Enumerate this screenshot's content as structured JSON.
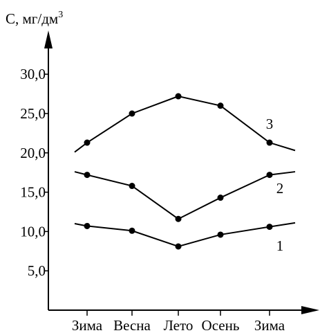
{
  "chart_data": {
    "type": "line",
    "ylabel_main": "C, мг/дм",
    "ylabel_sup": "3",
    "categories": [
      "Зима",
      "Весна",
      "Лето",
      "Осень",
      "Зима"
    ],
    "yticks": [
      "5,0",
      "10,0",
      "15,0",
      "20,0",
      "25,0",
      "30,0"
    ],
    "ytick_values": [
      5,
      10,
      15,
      20,
      25,
      30
    ],
    "ylim": [
      0,
      36
    ],
    "grid": false,
    "colors": {
      "line": "#000000",
      "axis": "#000000",
      "background": "#ffffff"
    },
    "series": [
      {
        "name": "1",
        "values": [
          10.7,
          10.1,
          8.1,
          9.6,
          10.6
        ],
        "ext_start": 11.0,
        "ext_end": 11.1
      },
      {
        "name": "2",
        "values": [
          17.2,
          15.8,
          11.6,
          14.3,
          17.2
        ],
        "ext_start": 17.6,
        "ext_end": 17.6
      },
      {
        "name": "3",
        "values": [
          21.3,
          25.0,
          27.2,
          26.0,
          21.3
        ],
        "ext_start": 20.1,
        "ext_end": 20.3
      }
    ]
  }
}
